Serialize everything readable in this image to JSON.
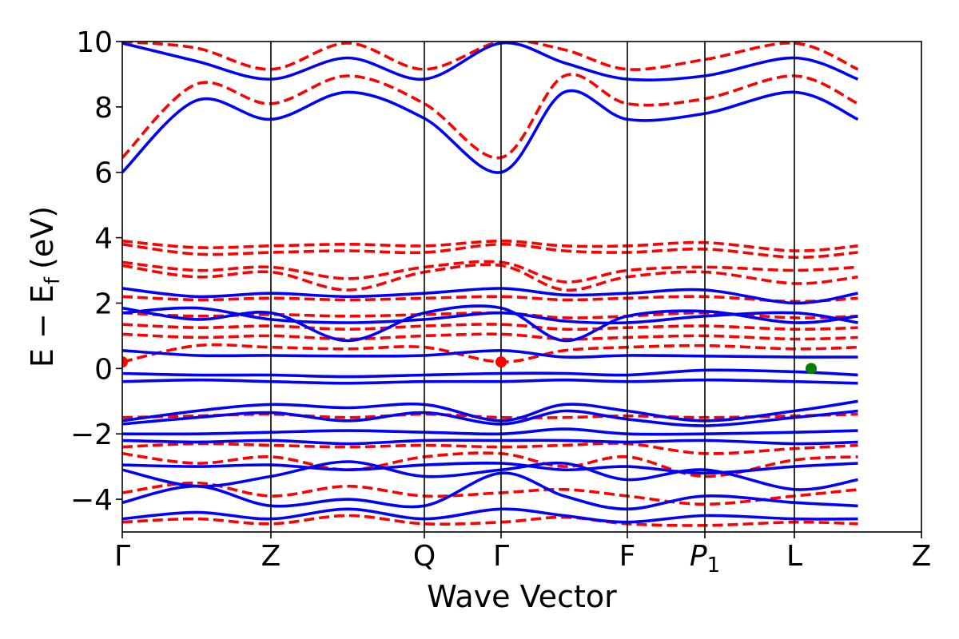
{
  "chart_data": {
    "type": "line",
    "xlabel": "Wave Vector",
    "ylabel_main": "E − E",
    "ylabel_sub": "f",
    "ylabel_unit": "(eV)",
    "ylim": [
      -5,
      10
    ],
    "yticks": [
      {
        "value": 10,
        "label": "10"
      },
      {
        "value": 8,
        "label": "8"
      },
      {
        "value": 6,
        "label": "6"
      },
      {
        "value": 4,
        "label": "4"
      },
      {
        "value": 2,
        "label": "2"
      },
      {
        "value": 0,
        "label": "0"
      },
      {
        "value": -2,
        "label": "−2"
      },
      {
        "value": -4,
        "label": "−4"
      }
    ],
    "kpoints": [
      {
        "label": "Γ",
        "sub": "",
        "italic": false,
        "pos": 0.0
      },
      {
        "label": "Z",
        "sub": "",
        "italic": false,
        "pos": 0.186
      },
      {
        "label": "Q",
        "sub": "",
        "italic": false,
        "pos": 0.378
      },
      {
        "label": "Γ",
        "sub": "",
        "italic": false,
        "pos": 0.474
      },
      {
        "label": "F",
        "sub": "",
        "italic": false,
        "pos": 0.632
      },
      {
        "label": "P",
        "sub": "1",
        "italic": true,
        "pos": 0.729
      },
      {
        "label": "L",
        "sub": "",
        "italic": false,
        "pos": 0.841
      },
      {
        "label": "Z",
        "sub": "",
        "italic": false,
        "pos": 1.0
      }
    ],
    "grid": false,
    "legend": "none",
    "series": [
      {
        "style": "solid",
        "color": "#0000ff",
        "bands": [
          [
            6.0,
            8.2,
            7.62,
            8.45,
            7.65,
            6.0,
            8.45,
            7.62,
            7.8,
            8.45,
            7.62
          ],
          [
            9.95,
            9.4,
            8.85,
            9.5,
            8.85,
            9.95,
            9.35,
            8.85,
            8.95,
            9.5,
            8.85
          ],
          [
            2.45,
            2.2,
            2.3,
            2.2,
            2.3,
            2.45,
            2.25,
            2.3,
            2.4,
            2.0,
            2.3
          ],
          [
            1.85,
            1.5,
            1.7,
            0.85,
            1.7,
            1.85,
            0.85,
            1.6,
            1.75,
            1.4,
            1.6
          ],
          [
            1.7,
            1.85,
            1.5,
            1.4,
            1.5,
            1.7,
            1.45,
            1.4,
            1.6,
            1.7,
            1.4
          ],
          [
            0.55,
            0.4,
            0.4,
            0.38,
            0.4,
            0.55,
            0.35,
            0.4,
            0.38,
            0.35,
            0.35
          ],
          [
            -0.15,
            -0.2,
            -0.2,
            -0.25,
            -0.2,
            -0.15,
            -0.15,
            -0.2,
            -0.05,
            -0.1,
            -0.2
          ],
          [
            -0.4,
            -0.35,
            -0.4,
            -0.45,
            -0.4,
            -0.4,
            -0.35,
            -0.4,
            -0.35,
            -0.4,
            -0.45
          ],
          [
            -1.6,
            -1.3,
            -1.1,
            -1.2,
            -1.1,
            -1.6,
            -1.1,
            -1.3,
            -1.6,
            -1.3,
            -1.0
          ],
          [
            -1.7,
            -1.5,
            -1.35,
            -1.6,
            -1.35,
            -1.7,
            -1.3,
            -1.55,
            -1.75,
            -1.5,
            -1.3
          ],
          [
            -2.0,
            -2.0,
            -1.95,
            -1.9,
            -1.95,
            -2.0,
            -1.85,
            -2.0,
            -2.0,
            -1.95,
            -1.9
          ],
          [
            -2.2,
            -2.25,
            -2.2,
            -2.3,
            -2.2,
            -2.2,
            -2.2,
            -2.25,
            -2.2,
            -2.3,
            -2.25
          ],
          [
            -2.95,
            -3.0,
            -2.95,
            -3.1,
            -2.95,
            -2.9,
            -3.1,
            -3.0,
            -3.2,
            -3.0,
            -2.9
          ],
          [
            -3.1,
            -3.6,
            -3.3,
            -2.85,
            -3.3,
            -3.1,
            -2.9,
            -3.4,
            -3.1,
            -3.7,
            -3.4
          ],
          [
            -4.1,
            -3.6,
            -4.2,
            -4.0,
            -4.2,
            -3.2,
            -3.9,
            -4.3,
            -3.9,
            -4.1,
            -4.2
          ],
          [
            -4.6,
            -4.4,
            -4.6,
            -4.3,
            -4.6,
            -4.3,
            -4.5,
            -4.7,
            -4.5,
            -4.6,
            -4.6
          ]
        ]
      },
      {
        "style": "dashed",
        "color": "#ff0000",
        "bands": [
          [
            6.45,
            8.7,
            8.1,
            8.95,
            8.1,
            6.45,
            8.95,
            8.1,
            8.25,
            8.95,
            8.1
          ],
          [
            10.0,
            9.8,
            9.15,
            9.95,
            9.15,
            10.0,
            9.75,
            9.15,
            9.45,
            9.95,
            9.15
          ],
          [
            3.9,
            3.7,
            3.75,
            3.8,
            3.75,
            3.9,
            3.75,
            3.75,
            3.85,
            3.6,
            3.75
          ],
          [
            3.8,
            3.5,
            3.55,
            3.6,
            3.55,
            3.8,
            3.6,
            3.55,
            3.65,
            3.4,
            3.55
          ],
          [
            3.25,
            3.0,
            3.1,
            2.75,
            3.1,
            3.25,
            2.65,
            3.0,
            3.1,
            3.0,
            3.1
          ],
          [
            3.15,
            2.8,
            2.95,
            2.4,
            2.95,
            3.15,
            2.4,
            2.8,
            2.95,
            2.6,
            2.8
          ],
          [
            2.2,
            2.1,
            2.15,
            2.1,
            2.15,
            2.2,
            2.1,
            2.15,
            2.2,
            2.05,
            2.15
          ],
          [
            1.7,
            1.6,
            1.65,
            1.6,
            1.65,
            1.7,
            1.55,
            1.6,
            1.7,
            1.55,
            1.6
          ],
          [
            1.35,
            1.25,
            1.3,
            1.2,
            1.3,
            1.35,
            1.2,
            1.25,
            1.3,
            1.2,
            1.25
          ],
          [
            1.05,
            0.95,
            1.0,
            0.9,
            1.0,
            1.05,
            0.9,
            0.95,
            1.0,
            0.9,
            0.95
          ],
          [
            0.2,
            0.7,
            0.65,
            0.6,
            0.65,
            0.2,
            0.55,
            0.65,
            0.7,
            0.6,
            0.65
          ],
          [
            -1.5,
            -1.45,
            -1.4,
            -1.5,
            -1.4,
            -1.5,
            -1.5,
            -1.45,
            -1.5,
            -1.45,
            -1.4
          ],
          [
            -2.4,
            -2.3,
            -2.35,
            -2.4,
            -2.35,
            -2.4,
            -2.35,
            -2.3,
            -2.6,
            -2.45,
            -2.35
          ],
          [
            -2.6,
            -2.9,
            -2.7,
            -3.1,
            -2.7,
            -2.6,
            -3.0,
            -2.7,
            -3.3,
            -2.8,
            -2.7
          ],
          [
            -3.8,
            -3.5,
            -3.9,
            -3.6,
            -3.9,
            -3.8,
            -3.7,
            -3.9,
            -4.15,
            -3.9,
            -3.7
          ],
          [
            -4.7,
            -4.6,
            -4.75,
            -4.5,
            -4.75,
            -4.7,
            -4.55,
            -4.75,
            -4.8,
            -4.7,
            -4.75
          ]
        ]
      }
    ],
    "markers": [
      {
        "pos": 0.0,
        "y": 0.2,
        "color": "#ff0000"
      },
      {
        "pos": 0.474,
        "y": 0.2,
        "color": "#ff0000"
      },
      {
        "pos": 0.862,
        "y": 0.0,
        "color": "#008000"
      }
    ]
  }
}
